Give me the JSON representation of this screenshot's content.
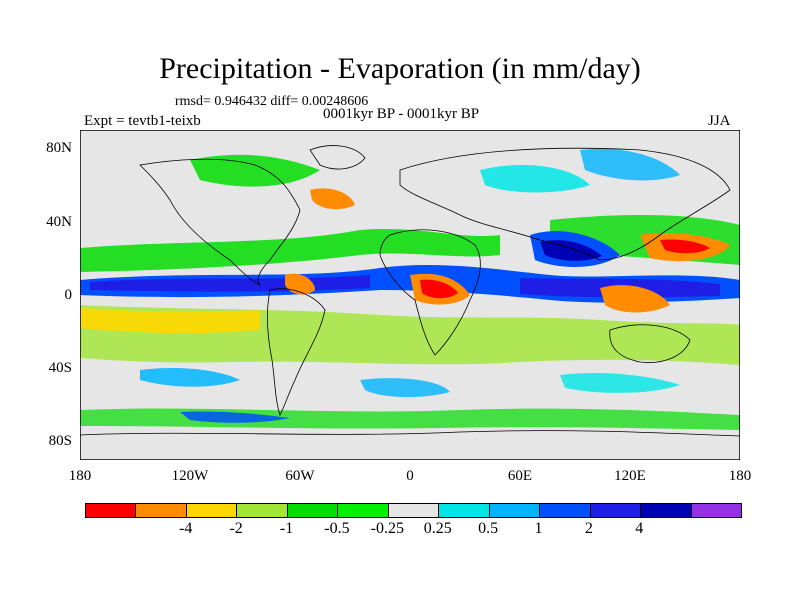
{
  "title": "Precipitation - Evaporation (in mm/day)",
  "stats": "rmsd= 0.946432 diff= 0.00248606",
  "experiment": "Expt = tevtb1-teixb",
  "period": "0001kyr BP - 0001kyr BP",
  "season": "JJA",
  "y_ticks": [
    "80N",
    "40N",
    "0",
    "40S",
    "80S"
  ],
  "x_ticks": [
    "180",
    "120W",
    "60W",
    "0",
    "60E",
    "120E",
    "180"
  ],
  "colorbar": {
    "colors": [
      "#ff0000",
      "#ff8c00",
      "#ffd700",
      "#a0e632",
      "#00dc00",
      "#00f000",
      "#e6e6e6",
      "#00e6e6",
      "#00b4ff",
      "#0050ff",
      "#1e1ee6",
      "#0000b4",
      "#9632e6"
    ],
    "labels": [
      "-4",
      "-2",
      "-1",
      "-0.5",
      "-0.25",
      "0.25",
      "0.5",
      "1",
      "2",
      "4"
    ]
  },
  "field_colors": {
    "ocean_base": "#e6e6e6",
    "land": "#e6e6e6"
  }
}
